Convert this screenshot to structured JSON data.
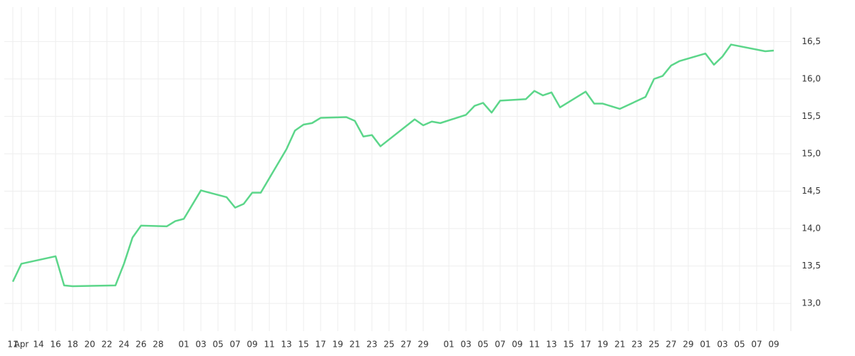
{
  "chart_data": {
    "type": "line",
    "color": "#5cd68a",
    "grid": true,
    "y_axis_side": "right",
    "x": [
      "04-11",
      "04-12",
      "04-16",
      "04-17",
      "04-18",
      "04-23",
      "04-24",
      "04-25",
      "04-26",
      "04-29",
      "04-30",
      "05-01",
      "05-03",
      "05-06",
      "05-07",
      "05-08",
      "05-09",
      "05-10",
      "05-13",
      "05-14",
      "05-15",
      "05-16",
      "05-17",
      "05-20",
      "05-21",
      "05-22",
      "05-23",
      "05-24",
      "05-28",
      "05-29",
      "05-30",
      "05-31",
      "06-03",
      "06-04",
      "06-05",
      "06-06",
      "06-07",
      "06-10",
      "06-11",
      "06-12",
      "06-13",
      "06-14",
      "06-17",
      "06-18",
      "06-19",
      "06-21",
      "06-24",
      "06-25",
      "06-26",
      "06-27",
      "06-28",
      "07-01",
      "07-02",
      "07-03",
      "07-04",
      "07-08",
      "07-09"
    ],
    "values": [
      13.29,
      13.53,
      13.63,
      13.24,
      13.23,
      13.24,
      13.53,
      13.88,
      14.04,
      14.03,
      14.1,
      14.13,
      14.51,
      14.42,
      14.28,
      14.33,
      14.48,
      14.48,
      15.06,
      15.31,
      15.39,
      15.41,
      15.48,
      15.49,
      15.44,
      15.23,
      15.25,
      15.1,
      15.46,
      15.38,
      15.43,
      15.41,
      15.52,
      15.64,
      15.68,
      15.55,
      15.71,
      15.73,
      15.84,
      15.78,
      15.82,
      15.62,
      15.83,
      15.67,
      15.67,
      15.6,
      15.76,
      16.0,
      16.04,
      16.18,
      16.24,
      16.34,
      16.19,
      16.3,
      16.46,
      16.37,
      16.38
    ],
    "xlim": [
      "04-10",
      "07-11"
    ],
    "xticks": [
      {
        "value": "04-11",
        "label": "11"
      },
      {
        "value": "04-12",
        "label": "Apr"
      },
      {
        "value": "04-14",
        "label": "14"
      },
      {
        "value": "04-16",
        "label": "16"
      },
      {
        "value": "04-18",
        "label": "18"
      },
      {
        "value": "04-20",
        "label": "20"
      },
      {
        "value": "04-22",
        "label": "22"
      },
      {
        "value": "04-24",
        "label": "24"
      },
      {
        "value": "04-26",
        "label": "26"
      },
      {
        "value": "04-28",
        "label": "28"
      },
      {
        "value": "05-01",
        "label": "01"
      },
      {
        "value": "05-03",
        "label": "03"
      },
      {
        "value": "05-05",
        "label": "05"
      },
      {
        "value": "05-07",
        "label": "07"
      },
      {
        "value": "05-09",
        "label": "09"
      },
      {
        "value": "05-11",
        "label": "11"
      },
      {
        "value": "05-13",
        "label": "13"
      },
      {
        "value": "05-15",
        "label": "15"
      },
      {
        "value": "05-17",
        "label": "17"
      },
      {
        "value": "05-19",
        "label": "19"
      },
      {
        "value": "05-21",
        "label": "21"
      },
      {
        "value": "05-23",
        "label": "23"
      },
      {
        "value": "05-25",
        "label": "25"
      },
      {
        "value": "05-27",
        "label": "27"
      },
      {
        "value": "05-29",
        "label": "29"
      },
      {
        "value": "06-01",
        "label": "01"
      },
      {
        "value": "06-03",
        "label": "03"
      },
      {
        "value": "06-05",
        "label": "05"
      },
      {
        "value": "06-07",
        "label": "07"
      },
      {
        "value": "06-09",
        "label": "09"
      },
      {
        "value": "06-11",
        "label": "11"
      },
      {
        "value": "06-13",
        "label": "13"
      },
      {
        "value": "06-15",
        "label": "15"
      },
      {
        "value": "06-17",
        "label": "17"
      },
      {
        "value": "06-19",
        "label": "19"
      },
      {
        "value": "06-21",
        "label": "21"
      },
      {
        "value": "06-23",
        "label": "23"
      },
      {
        "value": "06-25",
        "label": "25"
      },
      {
        "value": "06-27",
        "label": "27"
      },
      {
        "value": "06-29",
        "label": "29"
      },
      {
        "value": "07-01",
        "label": "01"
      },
      {
        "value": "07-03",
        "label": "03"
      },
      {
        "value": "07-05",
        "label": "05"
      },
      {
        "value": "07-07",
        "label": "07"
      },
      {
        "value": "07-09",
        "label": "09"
      }
    ],
    "ylim": [
      12.63,
      16.96
    ],
    "yticks": [
      {
        "value": 13,
        "label": "13,0"
      },
      {
        "value": 13.5,
        "label": "13,5"
      },
      {
        "value": 14,
        "label": "14,0"
      },
      {
        "value": 14.5,
        "label": "14,5"
      },
      {
        "value": 15,
        "label": "15,0"
      },
      {
        "value": 15.5,
        "label": "15,5"
      },
      {
        "value": 16,
        "label": "16,0"
      },
      {
        "value": 16.5,
        "label": "16,5"
      }
    ]
  }
}
